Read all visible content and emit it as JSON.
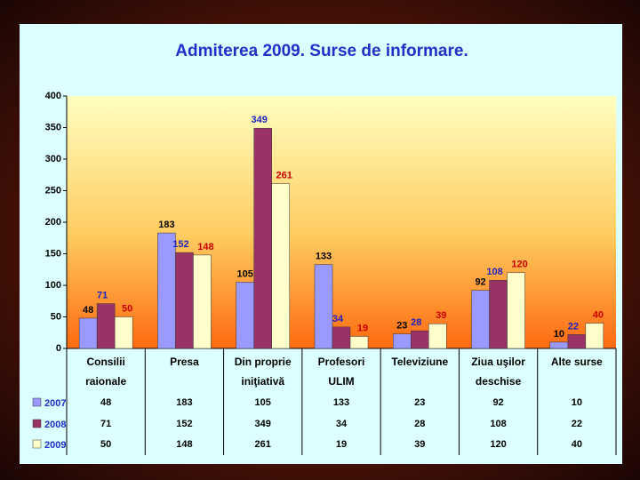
{
  "chart_data": {
    "type": "bar",
    "title": "Admiterea 2009. Surse de informare.",
    "categories": [
      "Consilii raionale",
      "Presa",
      "Din proprie iniţiativă",
      "Profesori ULIM",
      "Televiziune",
      "Ziua uşilor deschise",
      "Alte surse"
    ],
    "series": [
      {
        "name": "2007",
        "color": "#9999ff",
        "label_color": "#000000",
        "values": [
          48,
          183,
          105,
          133,
          23,
          92,
          10
        ]
      },
      {
        "name": "2008",
        "color": "#993366",
        "label_color": "#2020c0",
        "values": [
          71,
          152,
          349,
          34,
          28,
          108,
          22
        ]
      },
      {
        "name": "2009",
        "color": "#ffffcc",
        "label_color": "#cc0000",
        "values": [
          50,
          148,
          261,
          19,
          39,
          120,
          40
        ]
      }
    ],
    "ylim": [
      0,
      400
    ],
    "yticks": [
      0,
      50,
      100,
      150,
      200,
      250,
      300,
      350,
      400
    ],
    "data_table": true
  }
}
